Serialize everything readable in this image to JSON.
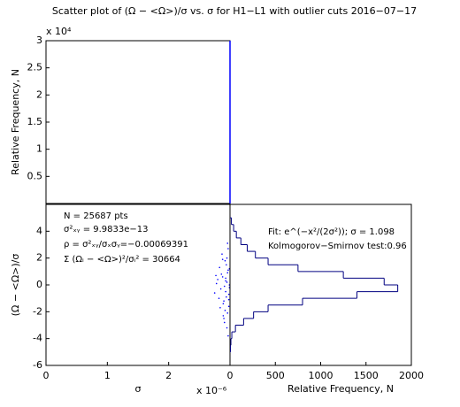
{
  "chart_data": [
    {
      "type": "spike",
      "title": "Scatter plot of (Ω − <Ω>)/σ vs. σ for H1−L1 with outlier cuts 2016−07−17",
      "ylabel": "Relative Frequency, N",
      "y_multiplier": "x 10⁴",
      "x": [
        3
      ],
      "values": [
        3
      ],
      "color": "#0000ff",
      "xlim": [
        0,
        3
      ],
      "ylim": [
        0,
        3
      ],
      "yticks": [
        0,
        0.5,
        1,
        1.5,
        2,
        2.5,
        3
      ]
    },
    {
      "type": "scatter",
      "xlabel": "σ",
      "x_multiplier": "x 10⁻⁶",
      "ylabel": "(Ω − <Ω>)/σ",
      "annotations": [
        "N = 25687 pts",
        "σ²ₓᵧ = 9.9833e−13",
        "ρ = σ²ₓᵧ/σₓσᵧ=−0.00069391",
        "Σ (Ωᵢ − <Ω>)²/σᵢ² = 30664"
      ],
      "color": "#0000ff",
      "x": [
        2.95,
        2.93,
        2.97,
        2.9,
        2.88,
        2.96,
        2.99,
        2.85,
        2.92,
        2.94,
        2.98,
        2.8,
        2.87,
        2.91,
        2.96,
        2.75,
        2.89,
        2.93,
        2.97,
        2.83,
        2.95,
        2.99,
        2.86,
        2.78,
        2.92,
        2.94,
        2.98,
        2.9,
        2.82,
        2.96,
        2.88,
        2.97,
        2.93,
        2.99,
        2.84,
        2.91,
        2.95,
        2.77,
        2.89,
        2.98
      ],
      "y": [
        0.2,
        -0.5,
        1.1,
        -1.2,
        0.6,
        -2.1,
        0.0,
        -0.3,
        1.8,
        -0.9,
        -1.6,
        0.4,
        2.3,
        -2.8,
        0.9,
        -0.6,
        -1.4,
        0.3,
        2.7,
        1.3,
        -3.2,
        -0.2,
        0.8,
        0.1,
        -1.9,
        1.5,
        -0.7,
        -2.5,
        -1.0,
        3.1,
        1.9,
        -3.8,
        0.5,
        1.2,
        -1.7,
        -0.1,
        2.0,
        0.7,
        -2.3,
        -1.1
      ],
      "xlim": [
        0,
        3
      ],
      "xticks": [
        0,
        1,
        2,
        3
      ],
      "ylim": [
        -6,
        6
      ],
      "yticks": [
        -6,
        -4,
        -2,
        0,
        2,
        4
      ]
    },
    {
      "type": "histogram",
      "xlabel": "Relative Frequency, N",
      "annotations": [
        "Fit: e^(−x²/(2σ²)); σ = 1.098",
        "Kolmogorov−Smirnov test:0.96"
      ],
      "color": "#000080",
      "bins": [
        -5,
        -4.5,
        -4,
        -3.5,
        -3,
        -2.5,
        -2,
        -1.5,
        -1,
        -0.5,
        0,
        0.5,
        1,
        1.5,
        2,
        2.5,
        3,
        3.5,
        4,
        4.5,
        5
      ],
      "values": [
        5,
        10,
        20,
        60,
        150,
        260,
        420,
        800,
        1400,
        1850,
        1700,
        1250,
        750,
        420,
        280,
        190,
        120,
        70,
        40,
        15
      ],
      "xlim": [
        0,
        2000
      ],
      "xticks": [
        0,
        500,
        1000,
        1500,
        2000
      ],
      "ylim": [
        -6,
        6
      ]
    }
  ]
}
